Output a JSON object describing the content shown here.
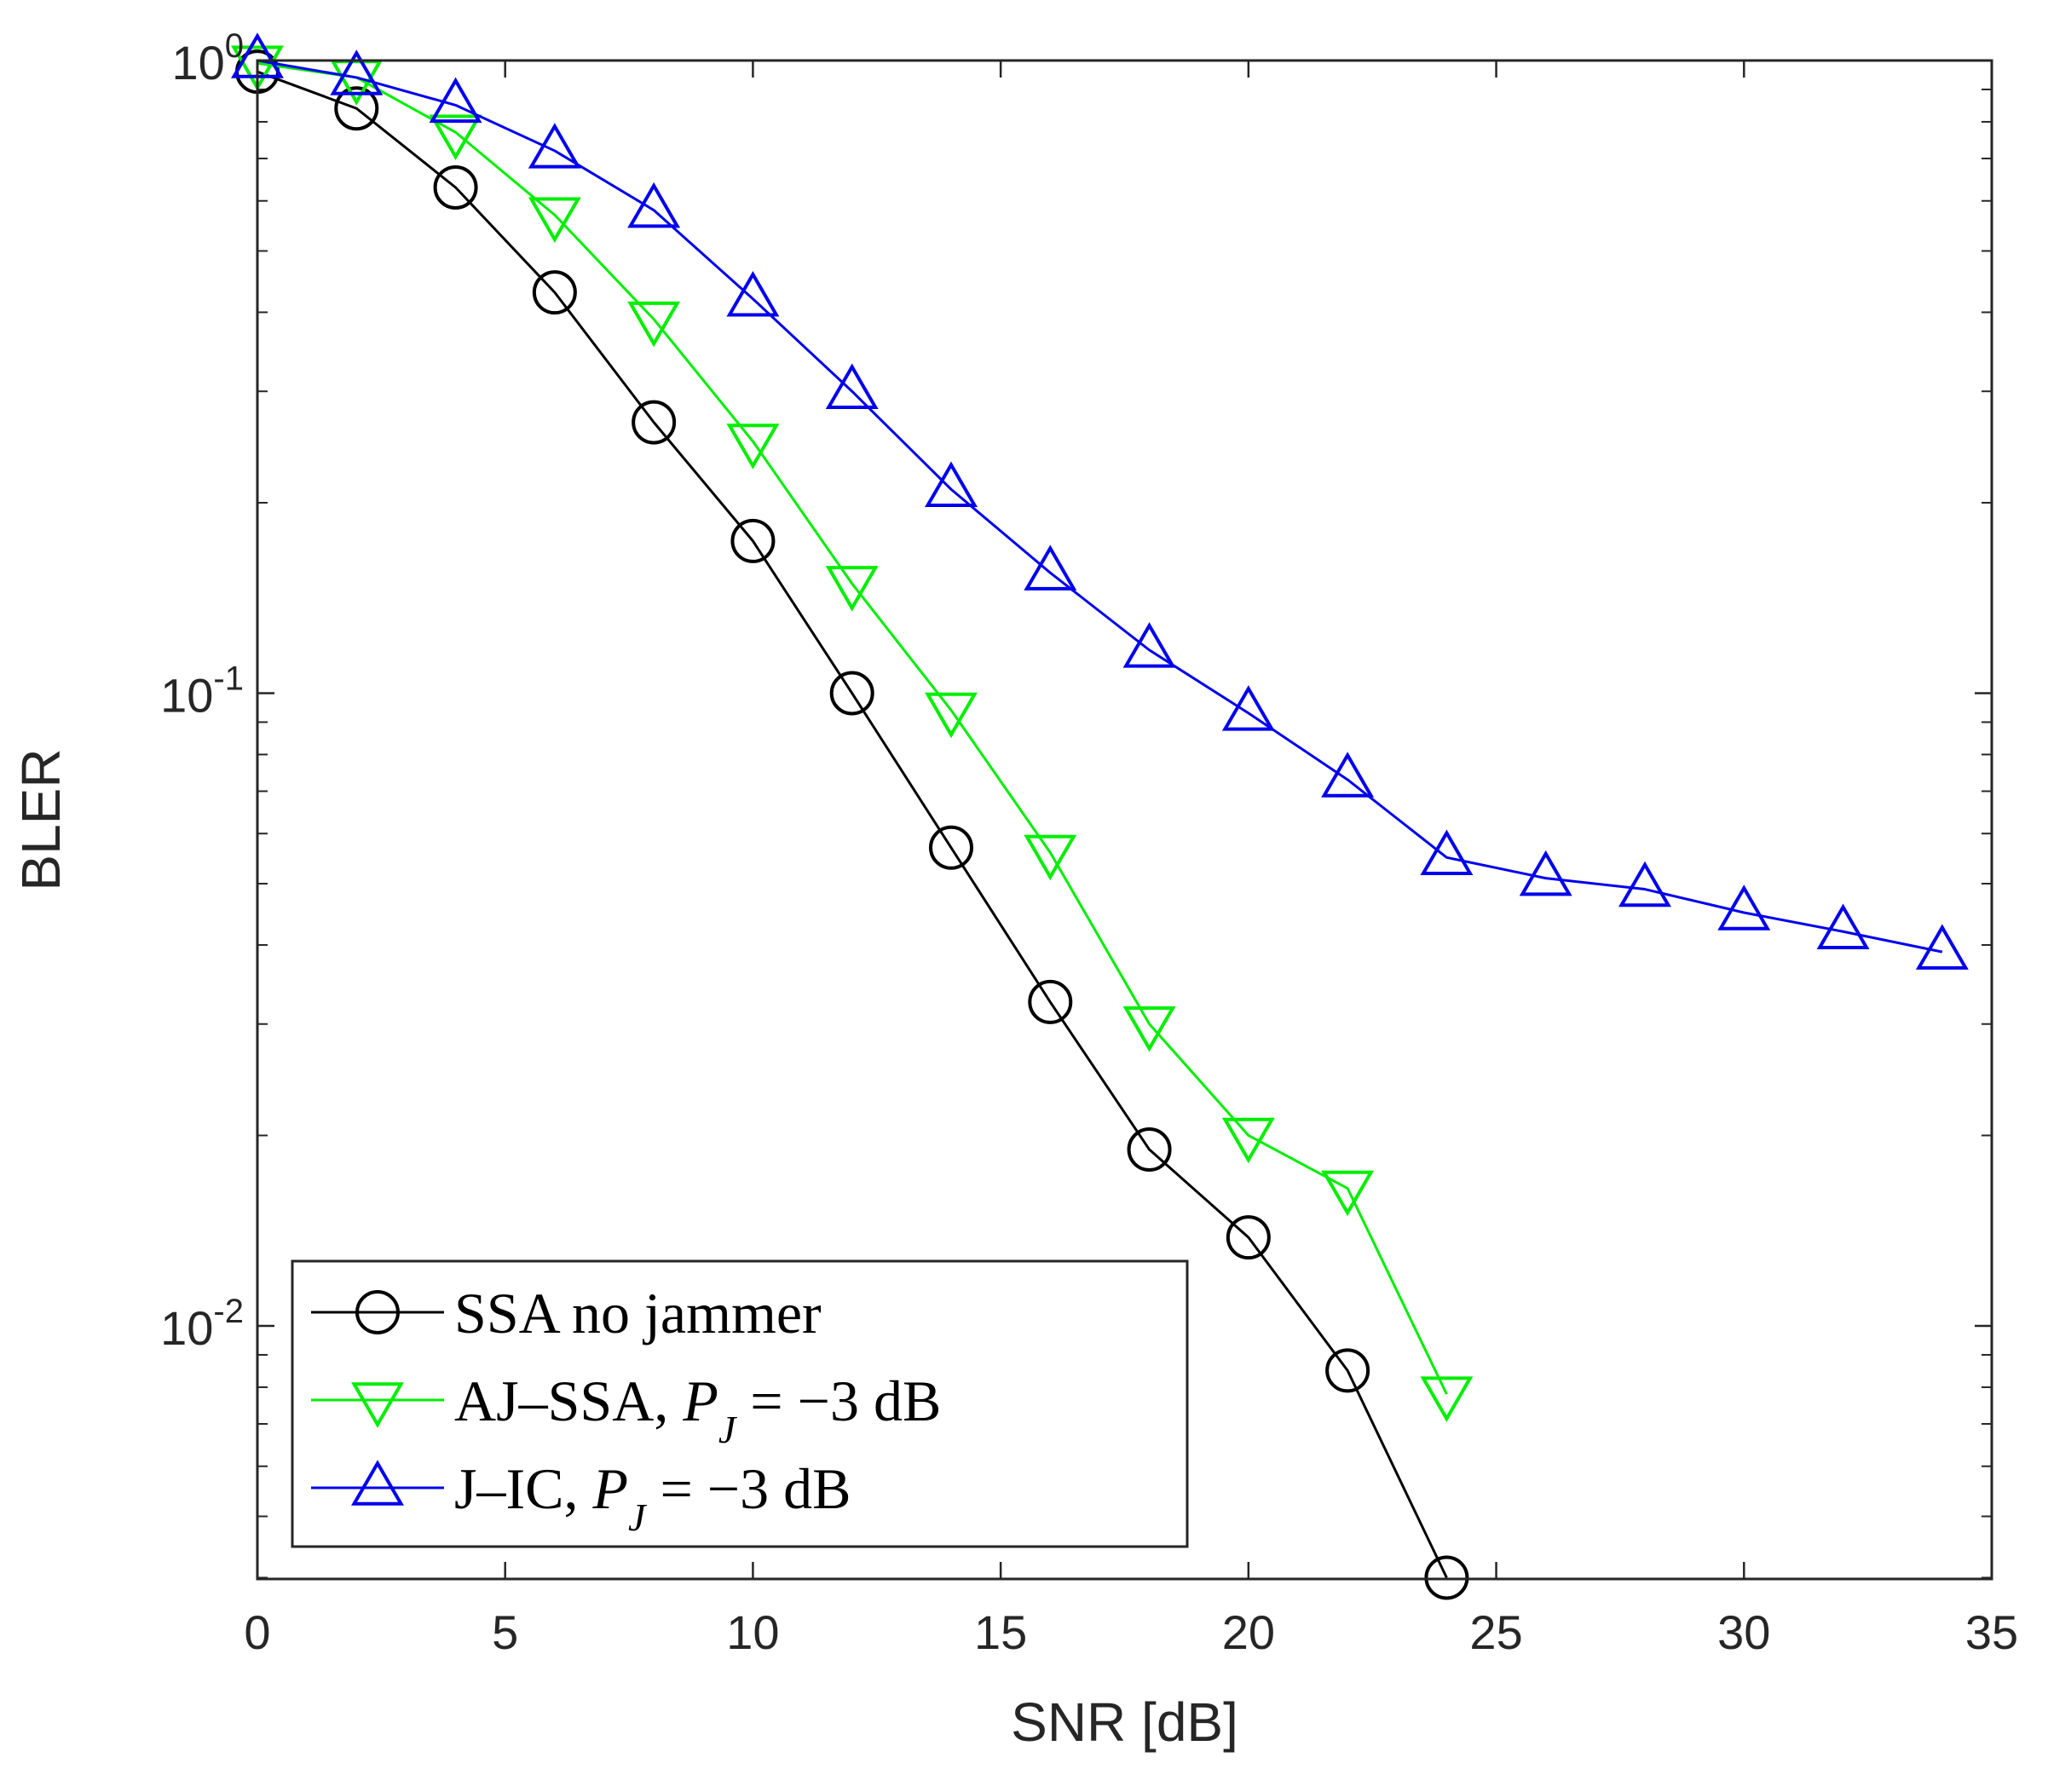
{
  "chart_data": {
    "type": "line",
    "xlabel": "SNR [dB]",
    "ylabel": "BLER",
    "xlim": [
      0,
      35
    ],
    "ylim_log10": [
      -2.4,
      0
    ],
    "yscale": "log",
    "x_ticks": [
      0,
      5,
      10,
      15,
      20,
      25,
      30,
      35
    ],
    "y_ticks": [
      {
        "base": "10",
        "exp": "0",
        "value": 1
      },
      {
        "base": "10",
        "exp": "-1",
        "value": 0.1
      },
      {
        "base": "10",
        "exp": "-2",
        "value": 0.01
      }
    ],
    "legend_position": "bottom-left",
    "series": [
      {
        "name": "SSA no jammer",
        "legend_parts": [
          {
            "text": "SSA no jammer",
            "italic": false
          }
        ],
        "color": "#000000",
        "marker": "circle",
        "x": [
          0,
          2,
          4,
          6,
          8,
          10,
          12,
          14,
          16,
          18,
          20,
          22,
          24
        ],
        "y": [
          0.96,
          0.84,
          0.63,
          0.43,
          0.268,
          0.174,
          0.1,
          0.057,
          0.0325,
          0.019,
          0.0138,
          0.0085,
          0.004
        ]
      },
      {
        "name": "AJ–SSA, PJ = −3 dB",
        "legend_parts": [
          {
            "text": "AJ–SSA, ",
            "italic": false
          },
          {
            "text": "P",
            "italic": true
          },
          {
            "text": "J",
            "italic": true,
            "sub": true
          },
          {
            "text": " = −3 dB",
            "italic": false
          }
        ],
        "color": "#00ee00",
        "marker": "triangle-down",
        "x": [
          0,
          2,
          4,
          6,
          8,
          10,
          12,
          14,
          16,
          18,
          20,
          22,
          24
        ],
        "y": [
          0.99,
          0.94,
          0.77,
          0.57,
          0.39,
          0.25,
          0.149,
          0.094,
          0.056,
          0.03,
          0.02,
          0.0165,
          0.0078
        ]
      },
      {
        "name": "J–IC, PJ = −3 dB",
        "legend_parts": [
          {
            "text": "J–IC, ",
            "italic": false
          },
          {
            "text": "P",
            "italic": true
          },
          {
            "text": "J",
            "italic": true,
            "sub": true
          },
          {
            "text": " = −3 dB",
            "italic": false
          }
        ],
        "color": "#0000ee",
        "marker": "triangle-up",
        "x": [
          0,
          2,
          4,
          6,
          8,
          10,
          12,
          14,
          16,
          18,
          20,
          22,
          24,
          26,
          28,
          30,
          32,
          34
        ],
        "y": [
          1.0,
          0.94,
          0.85,
          0.72,
          0.58,
          0.42,
          0.3,
          0.21,
          0.155,
          0.117,
          0.093,
          0.073,
          0.055,
          0.051,
          0.049,
          0.045,
          0.042,
          0.039
        ]
      }
    ]
  }
}
